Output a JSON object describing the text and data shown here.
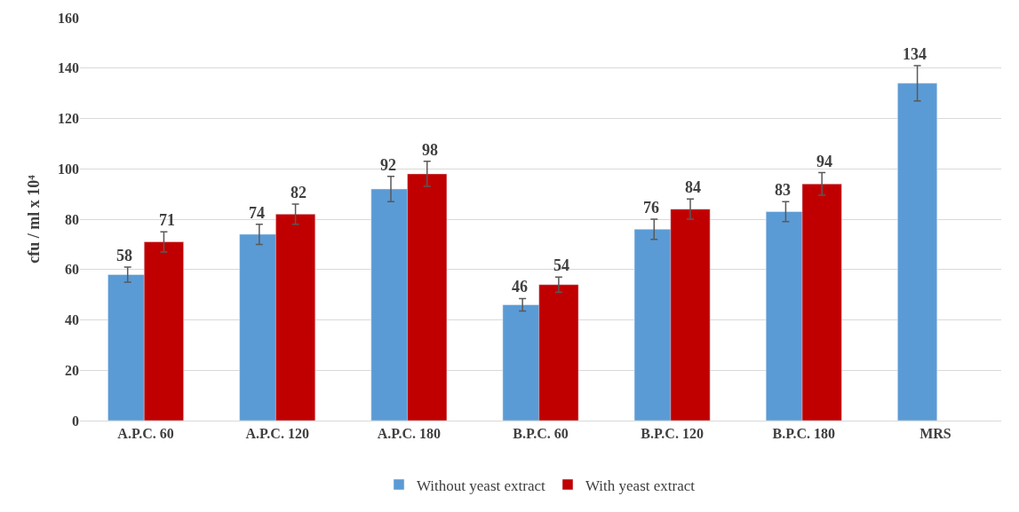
{
  "chart_data": {
    "type": "bar",
    "ylabel": "cfu / ml x 10⁴",
    "categories": [
      "A.P.C. 60",
      "A.P.C. 120",
      "A.P.C. 180",
      "B.P.C. 60",
      "B.P.C. 120",
      "B.P.C. 180",
      "MRS"
    ],
    "series": [
      {
        "name": "Without yeast extract",
        "color": "#5b9bd5",
        "values": [
          58,
          74,
          92,
          46,
          76,
          83,
          134
        ],
        "errors": [
          3,
          4,
          5,
          2.5,
          4,
          4,
          7
        ]
      },
      {
        "name": "With yeast extract",
        "color": "#c00000",
        "values": [
          71,
          82,
          98,
          54,
          84,
          94,
          null
        ],
        "errors": [
          4,
          4,
          5,
          3,
          4,
          4.5,
          null
        ]
      }
    ],
    "ylim": [
      0,
      160
    ],
    "yticks": [
      0,
      20,
      40,
      60,
      80,
      100,
      120,
      140,
      160
    ],
    "grid": "y",
    "legend": "bottom",
    "data_labels": true
  }
}
